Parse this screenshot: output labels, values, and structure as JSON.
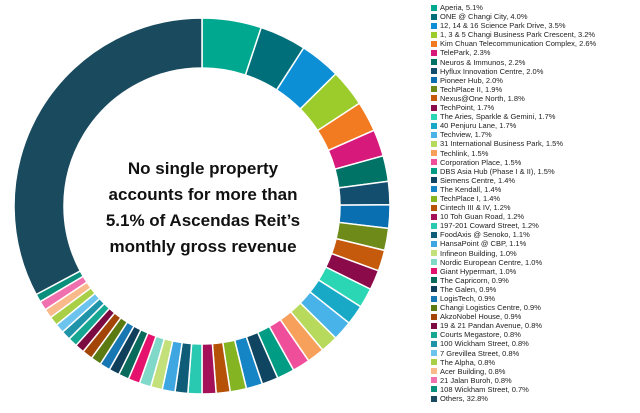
{
  "chart_data": {
    "type": "pie",
    "donut": true,
    "center_text": [
      "No single property",
      "accounts for more than",
      "5.1% of Ascendas Reit’s",
      "monthly gross revenue"
    ],
    "legend_position": "right",
    "slices": [
      {
        "label": "Aperia, 5.1%",
        "value": 5.1,
        "color": "#00a88f"
      },
      {
        "label": "ONE @ Changi City, 4.0%",
        "value": 4.0,
        "color": "#006f7a"
      },
      {
        "label": "12, 14 & 16 Science Park Drive, 3.5%",
        "value": 3.5,
        "color": "#0d8fd6"
      },
      {
        "label": "1, 3 & 5 Changi Business Park Crescent, 3.2%",
        "value": 3.2,
        "color": "#9ccc2b"
      },
      {
        "label": "Kim Chuan Telecommunication Complex, 2.6%",
        "value": 2.6,
        "color": "#f27b22"
      },
      {
        "label": "TelePark, 2.3%",
        "value": 2.3,
        "color": "#d6197a"
      },
      {
        "label": "Neuros & Immunos, 2.2%",
        "value": 2.2,
        "color": "#007366"
      },
      {
        "label": "Hyflux Innovation Centre, 2.0%",
        "value": 2.0,
        "color": "#134e6f"
      },
      {
        "label": "Pioneer Hub, 2.0%",
        "value": 2.0,
        "color": "#0a6fb0"
      },
      {
        "label": "TechPlace II, 1.9%",
        "value": 1.9,
        "color": "#6e8b1a"
      },
      {
        "label": "Nexus@One North, 1.8%",
        "value": 1.8,
        "color": "#c65a0c"
      },
      {
        "label": "TechPoint, 1.7%",
        "value": 1.7,
        "color": "#8b0a4a"
      },
      {
        "label": "The Aries, Sparkle & Gemini, 1.7%",
        "value": 1.7,
        "color": "#2bd6b4"
      },
      {
        "label": "40 Penjuru Lane, 1.7%",
        "value": 1.7,
        "color": "#17a9c6"
      },
      {
        "label": "Techview, 1.7%",
        "value": 1.7,
        "color": "#48b3e8"
      },
      {
        "label": "31 International Business Park, 1.5%",
        "value": 1.5,
        "color": "#b7d95c"
      },
      {
        "label": "Techlink, 1.5%",
        "value": 1.5,
        "color": "#f7a05c"
      },
      {
        "label": "Corporation Place, 1.5%",
        "value": 1.5,
        "color": "#ef4f9a"
      },
      {
        "label": "DBS Asia Hub (Phase I & II), 1.5%",
        "value": 1.5,
        "color": "#009c84"
      },
      {
        "label": "Siemens Centre, 1.4%",
        "value": 1.4,
        "color": "#0f4560"
      },
      {
        "label": "The Kendall, 1.4%",
        "value": 1.4,
        "color": "#1685c6"
      },
      {
        "label": "TechPlace I, 1.4%",
        "value": 1.4,
        "color": "#85b423"
      },
      {
        "label": "Cintech III & IV, 1.2%",
        "value": 1.2,
        "color": "#b55208"
      },
      {
        "label": "10 Toh Guan Road, 1.2%",
        "value": 1.2,
        "color": "#a41159"
      },
      {
        "label": "197-201 Coward Street, 1.2%",
        "value": 1.2,
        "color": "#28c9b0"
      },
      {
        "label": "FoodAxis @ Senoko, 1.1%",
        "value": 1.1,
        "color": "#0f5c78"
      },
      {
        "label": "HansaPoint @ CBP, 1.1%",
        "value": 1.1,
        "color": "#3ea6e0"
      },
      {
        "label": "Infineon Building, 1.0%",
        "value": 1.0,
        "color": "#c3e07a"
      },
      {
        "label": "Nordic European Centre, 1.0%",
        "value": 1.0,
        "color": "#7fd8c8"
      },
      {
        "label": "Giant Hypermart, 1.0%",
        "value": 1.0,
        "color": "#e4126d"
      },
      {
        "label": "The Capricorn, 0.9%",
        "value": 0.9,
        "color": "#0a6b5c"
      },
      {
        "label": "The Galen, 0.9%",
        "value": 0.9,
        "color": "#0f3f5a"
      },
      {
        "label": "LogisTech, 0.9%",
        "value": 0.9,
        "color": "#1677b3"
      },
      {
        "label": "Changi Logistics Centre, 0.9%",
        "value": 0.9,
        "color": "#5b7a12"
      },
      {
        "label": "AkzoNobel House, 0.9%",
        "value": 0.9,
        "color": "#a34506"
      },
      {
        "label": "19 & 21 Pandan Avenue, 0.8%",
        "value": 0.8,
        "color": "#7a0a40"
      },
      {
        "label": "Courts Megastore, 0.8%",
        "value": 0.8,
        "color": "#15a792"
      },
      {
        "label": "100 Wickham Street, 0.8%",
        "value": 0.8,
        "color": "#1f93a8"
      },
      {
        "label": "7 Grevillea Street, 0.8%",
        "value": 0.8,
        "color": "#6cc4ee"
      },
      {
        "label": "The Alpha, 0.8%",
        "value": 0.8,
        "color": "#a8cf45"
      },
      {
        "label": "Acer Building, 0.8%",
        "value": 0.8,
        "color": "#f9b98a"
      },
      {
        "label": "21 Jalan Buroh, 0.8%",
        "value": 0.8,
        "color": "#f06fae"
      },
      {
        "label": "108 Wickham Street, 0.7%",
        "value": 0.7,
        "color": "#0a8f7c"
      },
      {
        "label": "Others, 32.8%",
        "value": 32.8,
        "color": "#1a4a5e"
      }
    ]
  }
}
